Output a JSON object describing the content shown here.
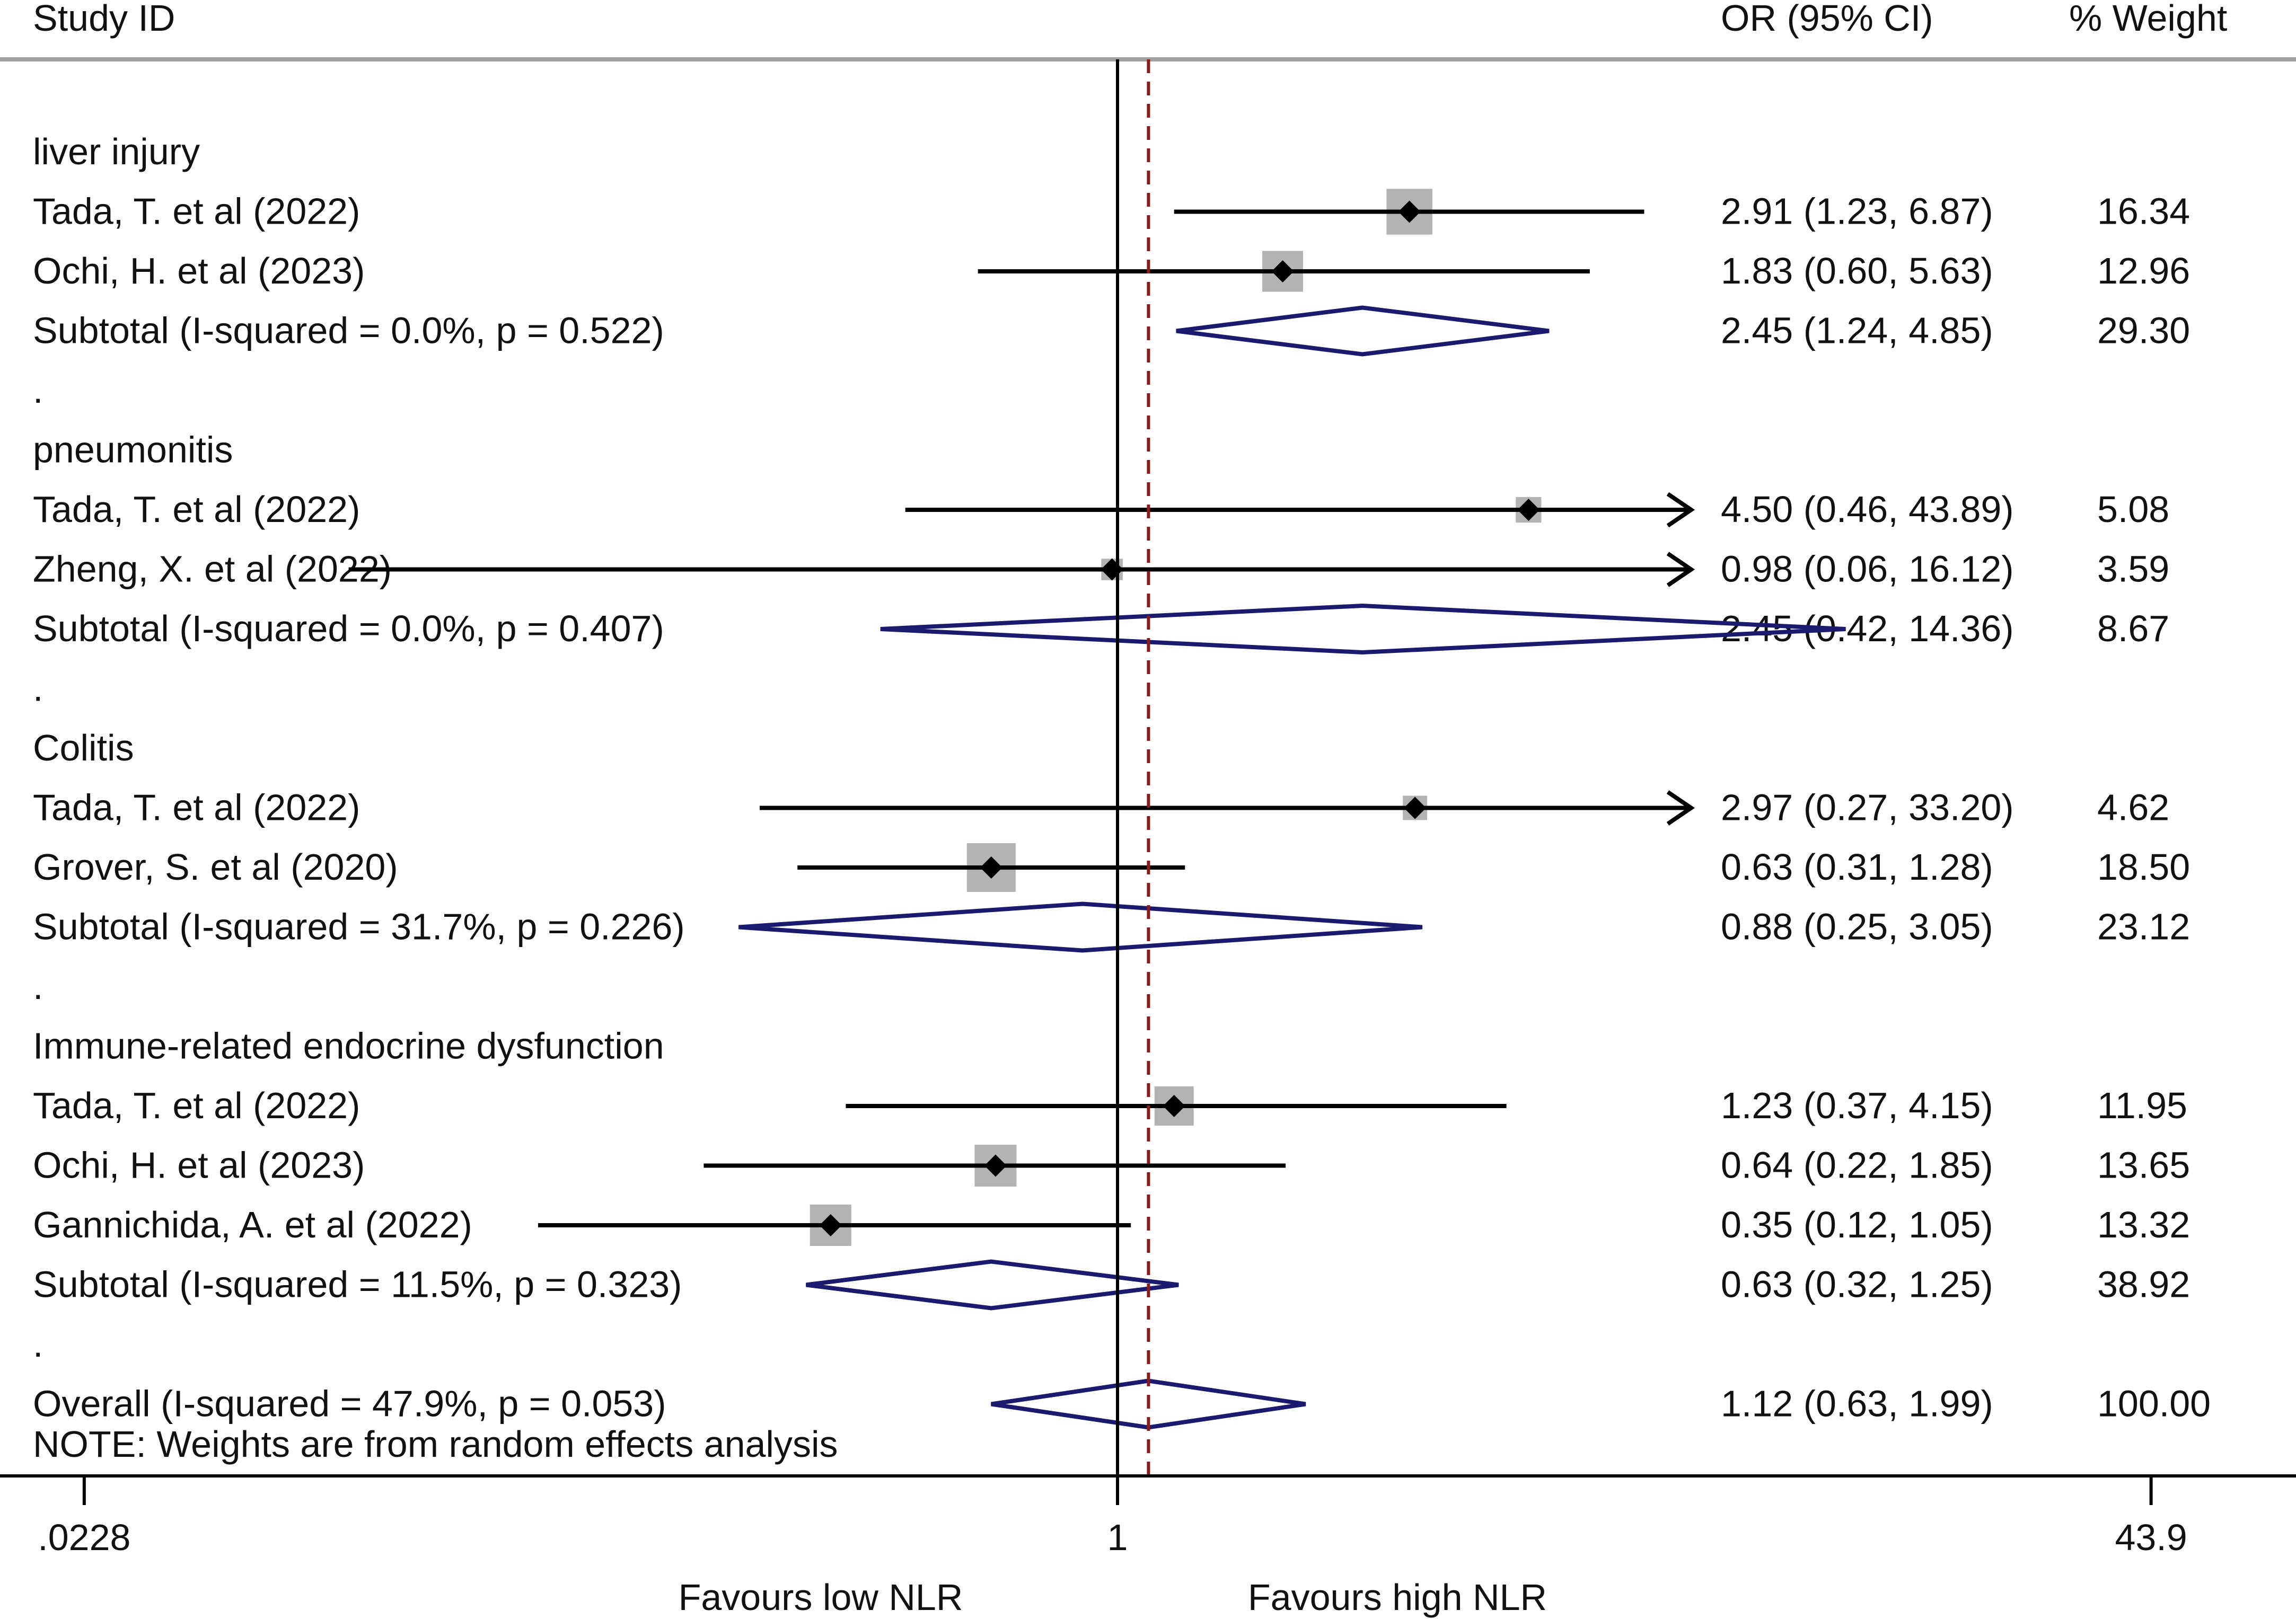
{
  "chart_data": {
    "type": "forest",
    "x_scale": "log",
    "null_value": 1,
    "overall_estimate": 1.12,
    "headers": {
      "study": "Study ID",
      "effect": "OR (95% CI)",
      "weight": "% Weight"
    },
    "axis": {
      "ticks": [
        {
          "value": 0.0228,
          "label": ".0228"
        },
        {
          "value": 1,
          "label": "1"
        },
        {
          "value": 43.9,
          "label": "43.9"
        }
      ],
      "left_label": "Favours low NLR",
      "right_label": "Favours high NLR"
    },
    "rows": [
      {
        "kind": "group",
        "label": "liver injury"
      },
      {
        "kind": "study",
        "label": "Tada, T.  et al (2022)",
        "or": 2.91,
        "lo": 1.23,
        "hi": 6.87,
        "ci_text": "2.91 (1.23, 6.87)",
        "weight": 16.34,
        "weight_text": "16.34"
      },
      {
        "kind": "study",
        "label": "Ochi, H.  et al (2023)",
        "or": 1.83,
        "lo": 0.6,
        "hi": 5.63,
        "ci_text": "1.83 (0.60, 5.63)",
        "weight": 12.96,
        "weight_text": "12.96"
      },
      {
        "kind": "subtotal",
        "label": "Subtotal  (I-squared = 0.0%, p = 0.522)",
        "or": 2.45,
        "lo": 1.24,
        "hi": 4.85,
        "ci_text": "2.45 (1.24, 4.85)",
        "weight_text": "29.30"
      },
      {
        "kind": "spacer",
        "label": "."
      },
      {
        "kind": "group",
        "label": "pneumonitis"
      },
      {
        "kind": "study",
        "label": "Tada, T.  et al (2022)",
        "or": 4.5,
        "lo": 0.46,
        "hi": 43.89,
        "ci_text": "4.50 (0.46, 43.89)",
        "weight": 5.08,
        "weight_text": "5.08"
      },
      {
        "kind": "study",
        "label": "Zheng, X.  et al (2022)",
        "or": 0.98,
        "lo": 0.06,
        "hi": 16.12,
        "ci_text": "0.98 (0.06, 16.12)",
        "weight": 3.59,
        "weight_text": "3.59"
      },
      {
        "kind": "subtotal",
        "label": "Subtotal  (I-squared = 0.0%, p = 0.407)",
        "or": 2.45,
        "lo": 0.42,
        "hi": 14.36,
        "ci_text": "2.45 (0.42, 14.36)",
        "weight_text": "8.67"
      },
      {
        "kind": "spacer",
        "label": "."
      },
      {
        "kind": "group",
        "label": "Colitis"
      },
      {
        "kind": "study",
        "label": "Tada, T.  et al (2022)",
        "or": 2.97,
        "lo": 0.27,
        "hi": 33.2,
        "ci_text": "2.97 (0.27, 33.20)",
        "weight": 4.62,
        "weight_text": "4.62"
      },
      {
        "kind": "study",
        "label": "Grover, S. et al (2020)",
        "or": 0.63,
        "lo": 0.31,
        "hi": 1.28,
        "ci_text": "0.63 (0.31, 1.28)",
        "weight": 18.5,
        "weight_text": "18.50"
      },
      {
        "kind": "subtotal",
        "label": "Subtotal  (I-squared = 31.7%, p = 0.226)",
        "or": 0.88,
        "lo": 0.25,
        "hi": 3.05,
        "ci_text": "0.88 (0.25, 3.05)",
        "weight_text": "23.12"
      },
      {
        "kind": "spacer",
        "label": "."
      },
      {
        "kind": "group",
        "label": "Immune-related endocrine dysfunction"
      },
      {
        "kind": "study",
        "label": "Tada, T.  et al (2022)",
        "or": 1.23,
        "lo": 0.37,
        "hi": 4.15,
        "ci_text": "1.23 (0.37, 4.15)",
        "weight": 11.95,
        "weight_text": "11.95"
      },
      {
        "kind": "study",
        "label": "Ochi, H.  et al (2023)",
        "or": 0.64,
        "lo": 0.22,
        "hi": 1.85,
        "ci_text": "0.64 (0.22, 1.85)",
        "weight": 13.65,
        "weight_text": "13.65"
      },
      {
        "kind": "study",
        "label": "Gannichida, A. et al (2022)",
        "or": 0.35,
        "lo": 0.12,
        "hi": 1.05,
        "ci_text": "0.35 (0.12, 1.05)",
        "weight": 13.32,
        "weight_text": "13.32"
      },
      {
        "kind": "subtotal",
        "label": "Subtotal  (I-squared = 11.5%, p = 0.323)",
        "or": 0.63,
        "lo": 0.32,
        "hi": 1.25,
        "ci_text": "0.63 (0.32, 1.25)",
        "weight_text": "38.92"
      },
      {
        "kind": "spacer",
        "label": "."
      },
      {
        "kind": "overall",
        "label": "Overall  (I-squared = 47.9%, p = 0.053)",
        "or": 1.12,
        "lo": 0.63,
        "hi": 1.99,
        "ci_text": "1.12 (0.63, 1.99)",
        "weight_text": "100.00"
      }
    ],
    "note": "NOTE: Weights are from random effects analysis",
    "colors": {
      "text": "#111111",
      "ci_line": "#000000",
      "weight_box": "#b3b3b3",
      "point": "#000000",
      "diamond": "#1a1a6e",
      "overall_line": "#8b1a1a",
      "rule": "#a0a0a0"
    }
  }
}
